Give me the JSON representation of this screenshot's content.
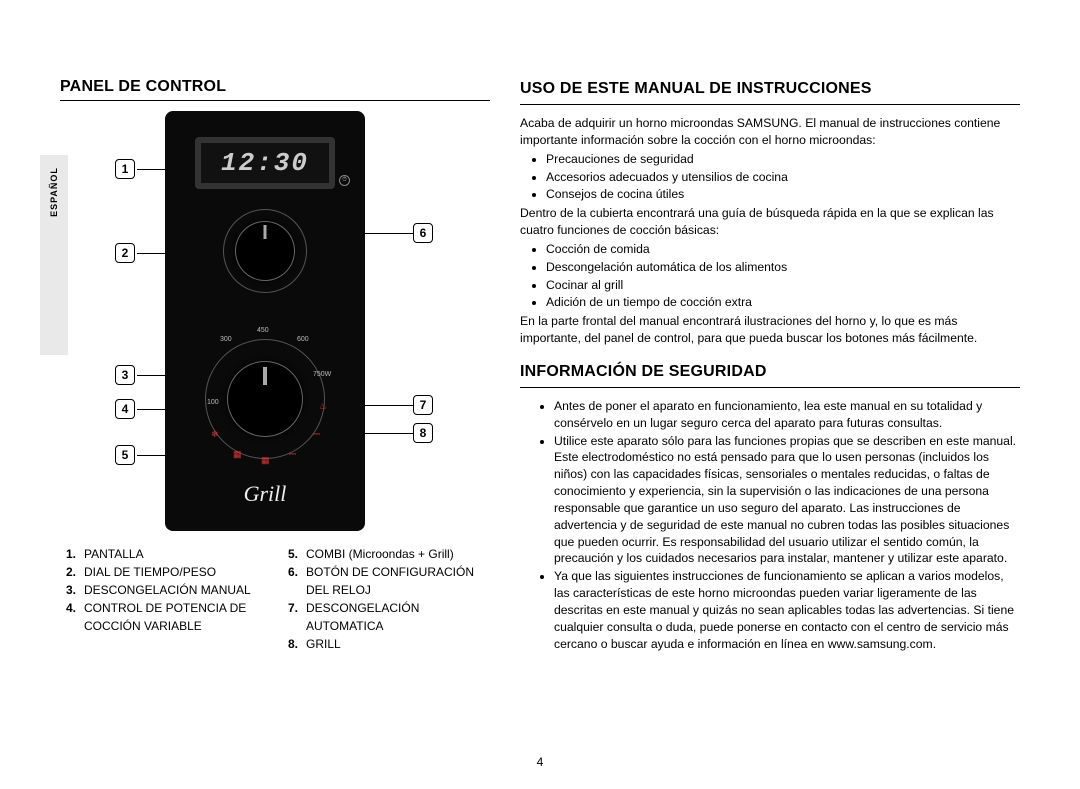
{
  "sidebar_tab": "ESPAÑOL",
  "page_number": "4",
  "left": {
    "heading": "PANEL DE CONTROL",
    "display_value": "12:30",
    "grill_logo": "Grill",
    "watt_labels": {
      "w300": "300",
      "w450": "450",
      "w600": "600",
      "w750": "750W",
      "w100": "100"
    },
    "callouts": {
      "c1": "1",
      "c2": "2",
      "c3": "3",
      "c4": "4",
      "c5": "5",
      "c6": "6",
      "c7": "7",
      "c8": "8"
    },
    "legend_left": [
      {
        "n": "1.",
        "t": "PANTALLA"
      },
      {
        "n": "2.",
        "t": "DIAL DE TIEMPO/PESO"
      },
      {
        "n": "3.",
        "t": "DESCONGELACIÓN MANUAL"
      },
      {
        "n": "4.",
        "t": "CONTROL DE POTENCIA DE COCCIÓN VARIABLE"
      }
    ],
    "legend_right": [
      {
        "n": "5.",
        "t": "COMBI (Microondas + Grill)"
      },
      {
        "n": "6.",
        "t": "BOTÓN DE CONFIGURACIÓN DEL RELOJ"
      },
      {
        "n": "7.",
        "t": "DESCONGELACIÓN AUTOMATICA"
      },
      {
        "n": "8.",
        "t": "GRILL"
      }
    ]
  },
  "right": {
    "heading1": "USO DE ESTE MANUAL DE INSTRUCCIONES",
    "intro": "Acaba de adquirir un horno microondas SAMSUNG. El manual de instrucciones contiene importante información sobre la cocción con el horno microondas:",
    "intro_bullets": [
      "Precauciones de seguridad",
      "Accesorios adecuados y utensilios de cocina",
      "Consejos de cocina útiles"
    ],
    "mid1": "Dentro de la cubierta encontrará una guía de búsqueda rápida en la que se explican las cuatro funciones de cocción básicas:",
    "mid_bullets": [
      "Cocción de comida",
      "Descongelación automática de los alimentos",
      "Cocinar al grill",
      "Adición de un tiempo de cocción extra"
    ],
    "mid2": "En la parte frontal del manual encontrará ilustraciones del horno y, lo que es más importante, del panel de control, para que pueda buscar los botones más fácilmente.",
    "heading2": "INFORMACIÓN DE SEGURIDAD",
    "safety_bullets": [
      "Antes de poner el aparato en funcionamiento, lea este manual en su totalidad y consérvelo en un lugar seguro cerca del aparato para futuras consultas.",
      "Utilice este aparato sólo para las funciones propias que se describen en este manual. Este electrodoméstico no está pensado para que lo usen personas (incluidos los niños) con las capacidades físicas, sensoriales o mentales reducidas, o faltas de conocimiento y experiencia, sin la supervisión o las indicaciones de una persona responsable que garantice un uso seguro del aparato. Las instrucciones de advertencia y de seguridad de este manual no cubren todas las posibles situaciones que pueden ocurrir. Es responsabilidad del usuario utilizar el sentido común, la precaución y los cuidados necesarios para instalar, mantener y utilizar este aparato.",
      "Ya que las siguientes instrucciones de funcionamiento se aplican a varios modelos, las características de este horno microondas pueden variar ligeramente de las descritas en este manual y quizás no sean aplicables todas las advertencias. Si tiene cualquier consulta o duda, puede ponerse en contacto con el centro de servicio más cercano o buscar ayuda e información en línea en www.samsung.com."
    ]
  },
  "colors": {
    "panel_bg": "#0a0a0a",
    "accent_red": "#d33",
    "tab_bg": "#e9e9e9",
    "rule": "#000000"
  }
}
